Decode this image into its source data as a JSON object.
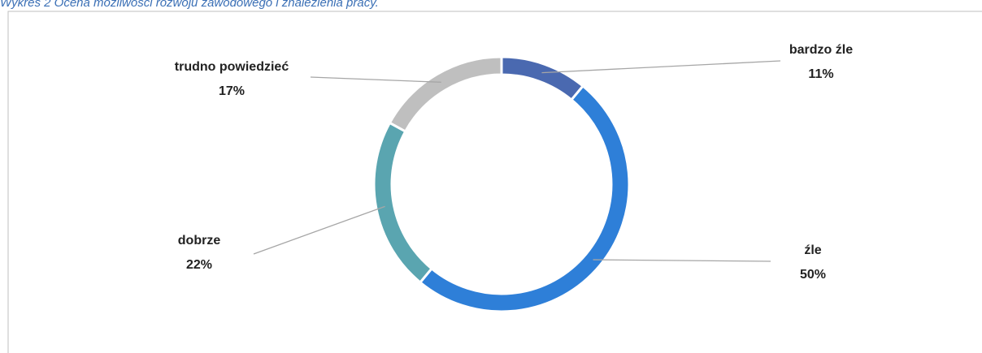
{
  "chart_data": {
    "type": "donut",
    "title": "Wykres 2 Ocena możliwości rozwoju zawodowego i znalezienia pracy.",
    "categories": [
      "bardzo źle",
      "źle",
      "dobrze",
      "trudno powiedzieć"
    ],
    "values": [
      11,
      50,
      22,
      17
    ],
    "value_labels": [
      "11%",
      "50%",
      "22%",
      "17%"
    ],
    "colors": [
      "#4a69b0",
      "#2e7fd8",
      "#5aa5b0",
      "#bfbfbf"
    ]
  }
}
